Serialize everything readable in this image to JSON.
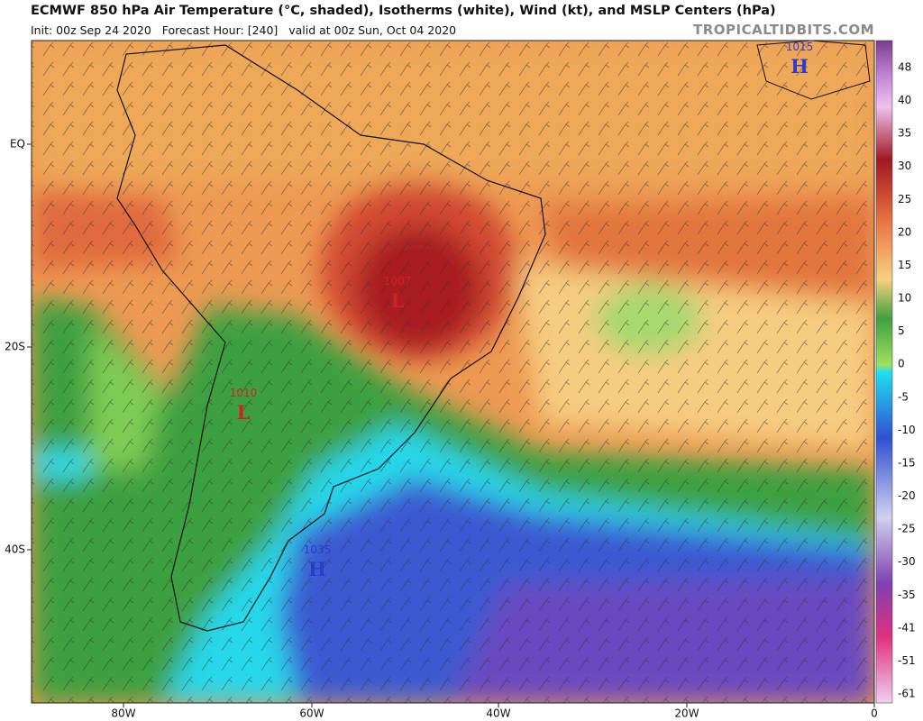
{
  "header": {
    "title": "ECMWF 850 hPa Air Temperature (°C, shaded), Isotherms (white), Wind (kt), and MSLP Centers (hPa)",
    "subtitle": "Init: 00z Sep 24 2020   Forecast Hour: [240]   valid at 00z Sun, Oct 04 2020",
    "site": "TROPICALTIDBITS.COM"
  },
  "map": {
    "lat_labels": [
      "EQ",
      "20S",
      "40S"
    ],
    "lon_labels": [
      "80W",
      "60W",
      "40W",
      "20W",
      "0"
    ],
    "pressure_centers": [
      {
        "value": "1015",
        "symbol": "H"
      },
      {
        "value": "1007",
        "symbol": "L"
      },
      {
        "value": "1010",
        "symbol": "L"
      },
      {
        "value": "1035",
        "symbol": "H"
      }
    ]
  },
  "colorbar": {
    "labels": [
      48,
      40,
      35,
      30,
      25,
      20,
      15,
      10,
      5,
      0,
      -5,
      -10,
      -15,
      -20,
      -25,
      -30,
      -35,
      -41,
      -51,
      -61
    ]
  }
}
